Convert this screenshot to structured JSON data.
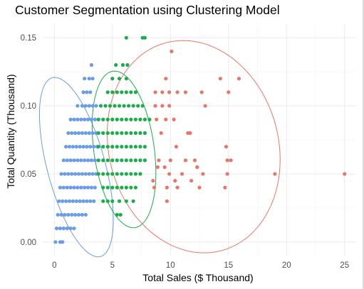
{
  "chart_data": {
    "type": "scatter",
    "title": "Customer Segmentation using Clustering Model",
    "xlabel": "Total Sales ($ Thousand)",
    "ylabel": "Total Quantity (Thousand)",
    "xlim": [
      -1,
      26
    ],
    "ylim": [
      -0.01,
      0.16
    ],
    "x_ticks": [
      0,
      5,
      10,
      15,
      20,
      25
    ],
    "x_tick_labels": [
      "0",
      "5",
      "10",
      "15",
      "20",
      "25"
    ],
    "y_ticks": [
      0,
      0.05,
      0.1,
      0.15
    ],
    "y_tick_labels": [
      "0.00",
      "0.05",
      "0.10",
      "0.15"
    ],
    "grid": true,
    "theme": "minimal",
    "series": [
      {
        "color": "#6a9de6",
        "points": [
          [
            0.1,
            0
          ],
          [
            0.5,
            0
          ],
          [
            0.7,
            0
          ],
          [
            0.2,
            0.01
          ],
          [
            0.5,
            0.01
          ],
          [
            0.8,
            0.01
          ],
          [
            1.1,
            0.01
          ],
          [
            1.4,
            0.01
          ],
          [
            1.7,
            0.01
          ],
          [
            0.3,
            0.02
          ],
          [
            0.6,
            0.02
          ],
          [
            0.9,
            0.02
          ],
          [
            1.2,
            0.02
          ],
          [
            1.5,
            0.02
          ],
          [
            1.8,
            0.02
          ],
          [
            2.1,
            0.02
          ],
          [
            2.4,
            0.02
          ],
          [
            2.7,
            0.02
          ],
          [
            0.4,
            0.03
          ],
          [
            0.7,
            0.03
          ],
          [
            1.0,
            0.03
          ],
          [
            1.3,
            0.03
          ],
          [
            1.6,
            0.03
          ],
          [
            1.9,
            0.03
          ],
          [
            2.2,
            0.03
          ],
          [
            2.5,
            0.03
          ],
          [
            2.8,
            0.03
          ],
          [
            3.1,
            0.03
          ],
          [
            3.4,
            0.03
          ],
          [
            0.5,
            0.04
          ],
          [
            0.8,
            0.04
          ],
          [
            1.1,
            0.04
          ],
          [
            1.4,
            0.04
          ],
          [
            1.7,
            0.04
          ],
          [
            2.0,
            0.04
          ],
          [
            2.3,
            0.04
          ],
          [
            2.6,
            0.04
          ],
          [
            2.9,
            0.04
          ],
          [
            3.2,
            0.04
          ],
          [
            3.5,
            0.04
          ],
          [
            0.6,
            0.05
          ],
          [
            0.9,
            0.05
          ],
          [
            1.2,
            0.05
          ],
          [
            1.5,
            0.05
          ],
          [
            1.8,
            0.05
          ],
          [
            2.1,
            0.05
          ],
          [
            2.4,
            0.05
          ],
          [
            2.7,
            0.05
          ],
          [
            3.0,
            0.05
          ],
          [
            3.3,
            0.05
          ],
          [
            3.6,
            0.05
          ],
          [
            0.8,
            0.06
          ],
          [
            1.1,
            0.06
          ],
          [
            1.4,
            0.06
          ],
          [
            1.7,
            0.06
          ],
          [
            2.0,
            0.06
          ],
          [
            2.3,
            0.06
          ],
          [
            2.6,
            0.06
          ],
          [
            2.9,
            0.06
          ],
          [
            3.2,
            0.06
          ],
          [
            3.5,
            0.06
          ],
          [
            1.0,
            0.07
          ],
          [
            1.3,
            0.07
          ],
          [
            1.6,
            0.07
          ],
          [
            1.9,
            0.07
          ],
          [
            2.2,
            0.07
          ],
          [
            2.5,
            0.07
          ],
          [
            2.8,
            0.07
          ],
          [
            3.1,
            0.07
          ],
          [
            3.4,
            0.07
          ],
          [
            3.7,
            0.07
          ],
          [
            1.2,
            0.08
          ],
          [
            1.5,
            0.08
          ],
          [
            1.8,
            0.08
          ],
          [
            2.1,
            0.08
          ],
          [
            2.4,
            0.08
          ],
          [
            2.7,
            0.08
          ],
          [
            3.0,
            0.08
          ],
          [
            3.3,
            0.08
          ],
          [
            3.6,
            0.08
          ],
          [
            1.4,
            0.09
          ],
          [
            1.7,
            0.09
          ],
          [
            2.0,
            0.09
          ],
          [
            2.3,
            0.09
          ],
          [
            2.6,
            0.09
          ],
          [
            2.9,
            0.09
          ],
          [
            3.2,
            0.09
          ],
          [
            3.5,
            0.09
          ],
          [
            2.0,
            0.1
          ],
          [
            2.4,
            0.1
          ],
          [
            2.7,
            0.1
          ],
          [
            3.0,
            0.1
          ],
          [
            3.3,
            0.1
          ],
          [
            3.6,
            0.1
          ],
          [
            2.5,
            0.11
          ],
          [
            2.8,
            0.11
          ],
          [
            3.1,
            0.11
          ],
          [
            2.6,
            0.12
          ],
          [
            3.0,
            0.12
          ],
          [
            3.3,
            0.12
          ],
          [
            3.2,
            0.13
          ]
        ]
      },
      {
        "color": "#1aad4a",
        "points": [
          [
            5.4,
            0.02
          ],
          [
            5.7,
            0.02
          ],
          [
            4.2,
            0.03
          ],
          [
            4.6,
            0.03
          ],
          [
            5.0,
            0.03
          ],
          [
            5.6,
            0.03
          ],
          [
            6.2,
            0.03
          ],
          [
            6.8,
            0.03
          ],
          [
            4.2,
            0.04
          ],
          [
            4.6,
            0.04
          ],
          [
            5.0,
            0.04
          ],
          [
            5.4,
            0.04
          ],
          [
            5.8,
            0.04
          ],
          [
            6.2,
            0.04
          ],
          [
            6.6,
            0.04
          ],
          [
            7.0,
            0.04
          ],
          [
            3.8,
            0.05
          ],
          [
            4.2,
            0.05
          ],
          [
            4.6,
            0.05
          ],
          [
            5.0,
            0.05
          ],
          [
            5.4,
            0.05
          ],
          [
            5.8,
            0.05
          ],
          [
            6.2,
            0.05
          ],
          [
            6.6,
            0.05
          ],
          [
            7.0,
            0.05
          ],
          [
            7.4,
            0.05
          ],
          [
            3.8,
            0.06
          ],
          [
            4.2,
            0.06
          ],
          [
            4.6,
            0.06
          ],
          [
            5.0,
            0.06
          ],
          [
            5.4,
            0.06
          ],
          [
            5.8,
            0.06
          ],
          [
            6.2,
            0.06
          ],
          [
            6.6,
            0.06
          ],
          [
            7.0,
            0.06
          ],
          [
            7.4,
            0.06
          ],
          [
            7.8,
            0.06
          ],
          [
            3.8,
            0.07
          ],
          [
            4.2,
            0.07
          ],
          [
            4.6,
            0.07
          ],
          [
            5.0,
            0.07
          ],
          [
            5.4,
            0.07
          ],
          [
            5.8,
            0.07
          ],
          [
            6.2,
            0.07
          ],
          [
            6.6,
            0.07
          ],
          [
            7.0,
            0.07
          ],
          [
            7.4,
            0.07
          ],
          [
            7.8,
            0.07
          ],
          [
            3.8,
            0.08
          ],
          [
            4.2,
            0.08
          ],
          [
            4.6,
            0.08
          ],
          [
            5.0,
            0.08
          ],
          [
            5.4,
            0.08
          ],
          [
            5.8,
            0.08
          ],
          [
            6.2,
            0.08
          ],
          [
            6.6,
            0.08
          ],
          [
            7.0,
            0.08
          ],
          [
            7.4,
            0.08
          ],
          [
            7.8,
            0.08
          ],
          [
            3.8,
            0.09
          ],
          [
            4.2,
            0.09
          ],
          [
            4.6,
            0.09
          ],
          [
            5.0,
            0.09
          ],
          [
            5.4,
            0.09
          ],
          [
            5.8,
            0.09
          ],
          [
            6.2,
            0.09
          ],
          [
            6.6,
            0.09
          ],
          [
            7.0,
            0.09
          ],
          [
            7.4,
            0.09
          ],
          [
            7.8,
            0.09
          ],
          [
            8.2,
            0.09
          ],
          [
            4.0,
            0.1
          ],
          [
            4.4,
            0.1
          ],
          [
            4.8,
            0.1
          ],
          [
            5.2,
            0.1
          ],
          [
            5.6,
            0.1
          ],
          [
            6.0,
            0.1
          ],
          [
            6.4,
            0.1
          ],
          [
            6.8,
            0.1
          ],
          [
            7.2,
            0.1
          ],
          [
            7.6,
            0.1
          ],
          [
            4.6,
            0.11
          ],
          [
            5.0,
            0.11
          ],
          [
            5.4,
            0.11
          ],
          [
            5.8,
            0.11
          ],
          [
            6.2,
            0.11
          ],
          [
            6.6,
            0.11
          ],
          [
            7.0,
            0.11
          ],
          [
            5.0,
            0.12
          ],
          [
            5.6,
            0.12
          ],
          [
            6.2,
            0.12
          ],
          [
            5.3,
            0.13
          ],
          [
            5.9,
            0.13
          ],
          [
            6.3,
            0.13
          ],
          [
            6.2,
            0.15
          ],
          [
            7.6,
            0.15
          ],
          [
            7.8,
            0.15
          ]
        ]
      },
      {
        "color": "#e8776b",
        "points": [
          [
            25.0,
            0.05
          ],
          [
            19.0,
            0.05
          ],
          [
            14.3,
            0.12
          ],
          [
            15.9,
            0.12
          ],
          [
            15.0,
            0.11
          ],
          [
            12.7,
            0.11
          ],
          [
            10.1,
            0.14
          ],
          [
            9.6,
            0.12
          ],
          [
            13.0,
            0.1
          ],
          [
            8.7,
            0.11
          ],
          [
            9.3,
            0.11
          ],
          [
            9.9,
            0.11
          ],
          [
            10.6,
            0.11
          ],
          [
            11.3,
            0.11
          ],
          [
            8.7,
            0.1
          ],
          [
            9.3,
            0.1
          ],
          [
            9.9,
            0.1
          ],
          [
            8.8,
            0.09
          ],
          [
            9.6,
            0.09
          ],
          [
            10.3,
            0.09
          ],
          [
            9.2,
            0.08
          ],
          [
            11.5,
            0.08
          ],
          [
            11.7,
            0.08
          ],
          [
            10.5,
            0.07
          ],
          [
            14.8,
            0.07
          ],
          [
            9.0,
            0.06
          ],
          [
            10.0,
            0.06
          ],
          [
            11.3,
            0.06
          ],
          [
            12.1,
            0.06
          ],
          [
            14.9,
            0.06
          ],
          [
            15.2,
            0.06
          ],
          [
            9.5,
            0.055
          ],
          [
            12.3,
            0.055
          ],
          [
            8.9,
            0.055
          ],
          [
            9.9,
            0.05
          ],
          [
            11.0,
            0.05
          ],
          [
            12.8,
            0.05
          ],
          [
            14.9,
            0.05
          ],
          [
            8.5,
            0.045
          ],
          [
            10.4,
            0.045
          ],
          [
            11.8,
            0.045
          ],
          [
            8.6,
            0.04
          ],
          [
            9.7,
            0.04
          ],
          [
            10.6,
            0.04
          ],
          [
            12.5,
            0.04
          ],
          [
            14.7,
            0.04
          ],
          [
            9.7,
            0.03
          ]
        ]
      }
    ],
    "ellipses": [
      {
        "color": "#6a9de6",
        "center": [
          1.9,
          0.055
        ],
        "x_semi": 2.5,
        "y_semi": 0.068,
        "angle_deg": 15
      },
      {
        "color": "#1aad4a",
        "center": [
          6.0,
          0.068
        ],
        "x_semi": 2.6,
        "y_semi": 0.058,
        "angle_deg": 8
      },
      {
        "color": "#e8776b",
        "center": [
          12.0,
          0.07
        ],
        "x_semi": 7.3,
        "y_semi": 0.079,
        "angle_deg": 15
      }
    ]
  }
}
